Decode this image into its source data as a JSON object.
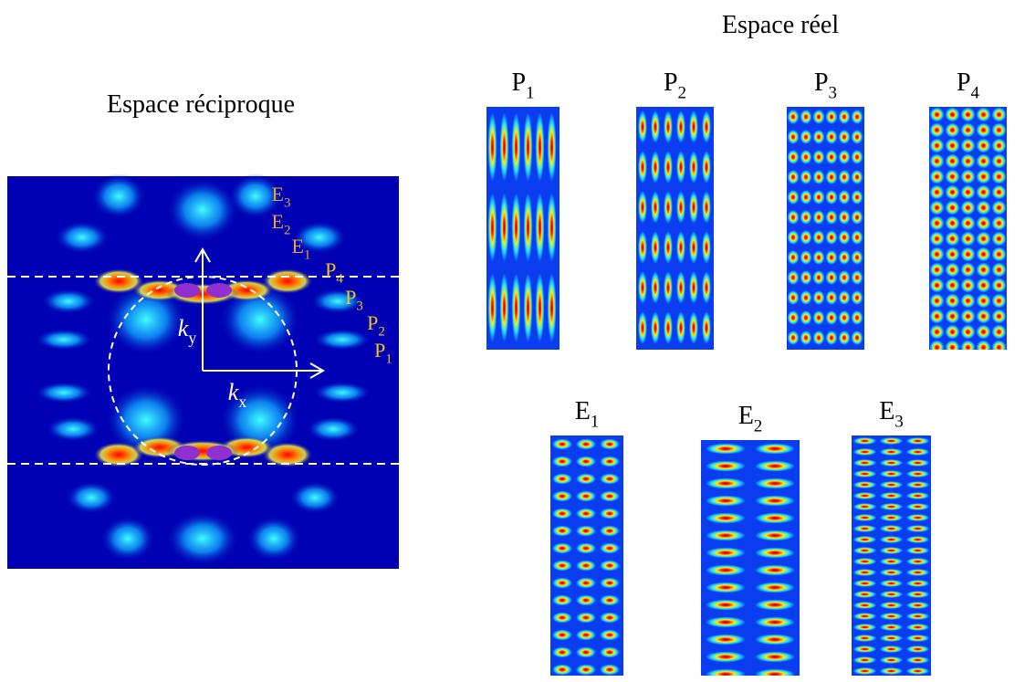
{
  "real_space": {
    "title": "Espace réel",
    "panels": [
      {
        "letter": "P",
        "index": "1"
      },
      {
        "letter": "P",
        "index": "2"
      },
      {
        "letter": "P",
        "index": "3"
      },
      {
        "letter": "P",
        "index": "4"
      },
      {
        "letter": "E",
        "index": "1"
      },
      {
        "letter": "E",
        "index": "2"
      },
      {
        "letter": "E",
        "index": "3"
      }
    ]
  },
  "reciprocal_space": {
    "title": "Espace réciproque",
    "axes": [
      {
        "letter": "k",
        "index": "y"
      },
      {
        "letter": "k",
        "index": "x"
      }
    ],
    "markers": [
      {
        "letter": "E",
        "index": "3"
      },
      {
        "letter": "E",
        "index": "2"
      },
      {
        "letter": "E",
        "index": "1"
      },
      {
        "letter": "P",
        "index": "4"
      },
      {
        "letter": "P",
        "index": "3"
      },
      {
        "letter": "P",
        "index": "2"
      },
      {
        "letter": "P",
        "index": "1"
      }
    ]
  }
}
